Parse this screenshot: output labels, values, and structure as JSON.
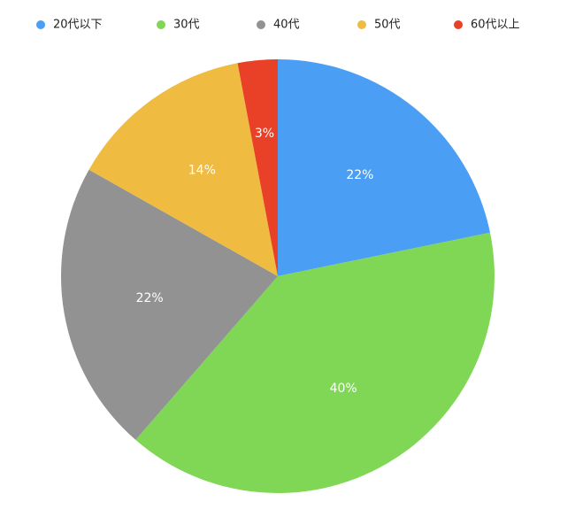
{
  "chart_data": {
    "type": "pie",
    "categories": [
      "20代以下",
      "30代",
      "40代",
      "50代",
      "60代以上"
    ],
    "values": [
      22,
      40,
      22,
      14,
      3
    ],
    "value_labels": [
      "22%",
      "40%",
      "22%",
      "14%",
      "3%"
    ],
    "colors": [
      "#4a9ff5",
      "#80d655",
      "#929292",
      "#efbb40",
      "#e94128"
    ],
    "legend": "top"
  }
}
